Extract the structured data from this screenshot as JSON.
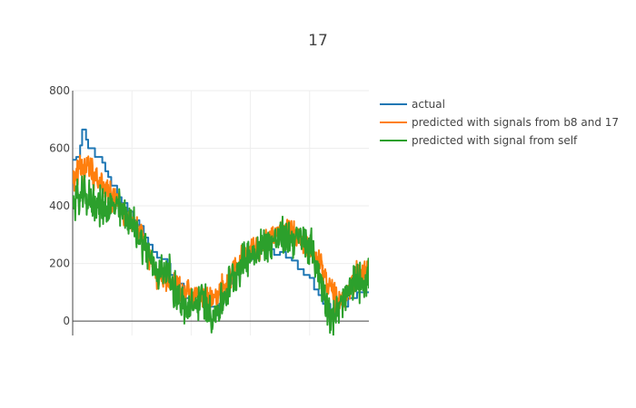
{
  "chart_data": {
    "type": "line",
    "title": "17",
    "xlabel": "",
    "ylabel": "",
    "ylim": [
      -50,
      800
    ],
    "xlim": [
      0,
      1000
    ],
    "grid": true,
    "legend_placement": "top-right outside",
    "yticks": [
      0,
      200,
      400,
      600,
      800
    ],
    "series": [
      {
        "name": "actual",
        "color": "#1f77b4",
        "kind": "step",
        "points": [
          [
            0,
            560
          ],
          [
            12,
            570
          ],
          [
            25,
            610
          ],
          [
            32,
            665
          ],
          [
            40,
            665
          ],
          [
            45,
            630
          ],
          [
            52,
            600
          ],
          [
            75,
            570
          ],
          [
            100,
            550
          ],
          [
            110,
            520
          ],
          [
            120,
            500
          ],
          [
            130,
            470
          ],
          [
            150,
            430
          ],
          [
            165,
            410
          ],
          [
            185,
            380
          ],
          [
            205,
            350
          ],
          [
            225,
            330
          ],
          [
            240,
            290
          ],
          [
            255,
            265
          ],
          [
            270,
            240
          ],
          [
            285,
            220
          ],
          [
            300,
            215
          ],
          [
            320,
            200
          ],
          [
            330,
            160
          ],
          [
            345,
            140
          ],
          [
            360,
            130
          ],
          [
            375,
            80
          ],
          [
            395,
            60
          ],
          [
            410,
            70
          ],
          [
            440,
            80
          ],
          [
            460,
            50
          ],
          [
            480,
            20
          ],
          [
            495,
            60
          ],
          [
            510,
            100
          ],
          [
            525,
            130
          ],
          [
            540,
            160
          ],
          [
            555,
            190
          ],
          [
            570,
            210
          ],
          [
            600,
            215
          ],
          [
            620,
            250
          ],
          [
            640,
            260
          ],
          [
            660,
            250
          ],
          [
            680,
            230
          ],
          [
            700,
            240
          ],
          [
            720,
            220
          ],
          [
            740,
            210
          ],
          [
            760,
            180
          ],
          [
            780,
            160
          ],
          [
            800,
            150
          ],
          [
            815,
            110
          ],
          [
            830,
            90
          ],
          [
            845,
            60
          ],
          [
            870,
            20
          ],
          [
            885,
            70
          ],
          [
            910,
            50
          ],
          [
            930,
            80
          ],
          [
            960,
            100
          ],
          [
            1000,
            100
          ]
        ]
      },
      {
        "name": "predicted with signals from b8 and 17",
        "color": "#ff7f0e",
        "kind": "noisy",
        "amp": 40,
        "points": [
          [
            0,
            490
          ],
          [
            30,
            540
          ],
          [
            60,
            520
          ],
          [
            90,
            480
          ],
          [
            120,
            450
          ],
          [
            150,
            410
          ],
          [
            180,
            370
          ],
          [
            210,
            330
          ],
          [
            240,
            290
          ],
          [
            260,
            210
          ],
          [
            280,
            170
          ],
          [
            300,
            150
          ],
          [
            320,
            140
          ],
          [
            340,
            140
          ],
          [
            360,
            120
          ],
          [
            390,
            95
          ],
          [
            420,
            90
          ],
          [
            460,
            80
          ],
          [
            480,
            70
          ],
          [
            500,
            100
          ],
          [
            530,
            160
          ],
          [
            560,
            210
          ],
          [
            600,
            240
          ],
          [
            640,
            270
          ],
          [
            680,
            300
          ],
          [
            710,
            320
          ],
          [
            740,
            310
          ],
          [
            770,
            280
          ],
          [
            800,
            250
          ],
          [
            830,
            200
          ],
          [
            860,
            140
          ],
          [
            880,
            90
          ],
          [
            900,
            60
          ],
          [
            930,
            100
          ],
          [
            960,
            160
          ],
          [
            1000,
            170
          ]
        ]
      },
      {
        "name": "predicted with signal from self",
        "color": "#2ca02c",
        "kind": "noisy",
        "amp": 55,
        "points": [
          [
            0,
            420
          ],
          [
            40,
            430
          ],
          [
            80,
            410
          ],
          [
            100,
            395
          ],
          [
            130,
            395
          ],
          [
            150,
            395
          ],
          [
            180,
            370
          ],
          [
            210,
            320
          ],
          [
            240,
            270
          ],
          [
            260,
            220
          ],
          [
            280,
            175
          ],
          [
            300,
            175
          ],
          [
            320,
            175
          ],
          [
            340,
            120
          ],
          [
            360,
            80
          ],
          [
            380,
            40
          ],
          [
            400,
            40
          ],
          [
            420,
            60
          ],
          [
            440,
            80
          ],
          [
            460,
            40
          ],
          [
            480,
            20
          ],
          [
            500,
            60
          ],
          [
            530,
            130
          ],
          [
            560,
            190
          ],
          [
            600,
            230
          ],
          [
            640,
            260
          ],
          [
            680,
            280
          ],
          [
            710,
            290
          ],
          [
            740,
            290
          ],
          [
            770,
            280
          ],
          [
            800,
            270
          ],
          [
            830,
            170
          ],
          [
            860,
            60
          ],
          [
            880,
            10
          ],
          [
            900,
            40
          ],
          [
            930,
            100
          ],
          [
            960,
            140
          ],
          [
            1000,
            150
          ]
        ]
      }
    ]
  }
}
